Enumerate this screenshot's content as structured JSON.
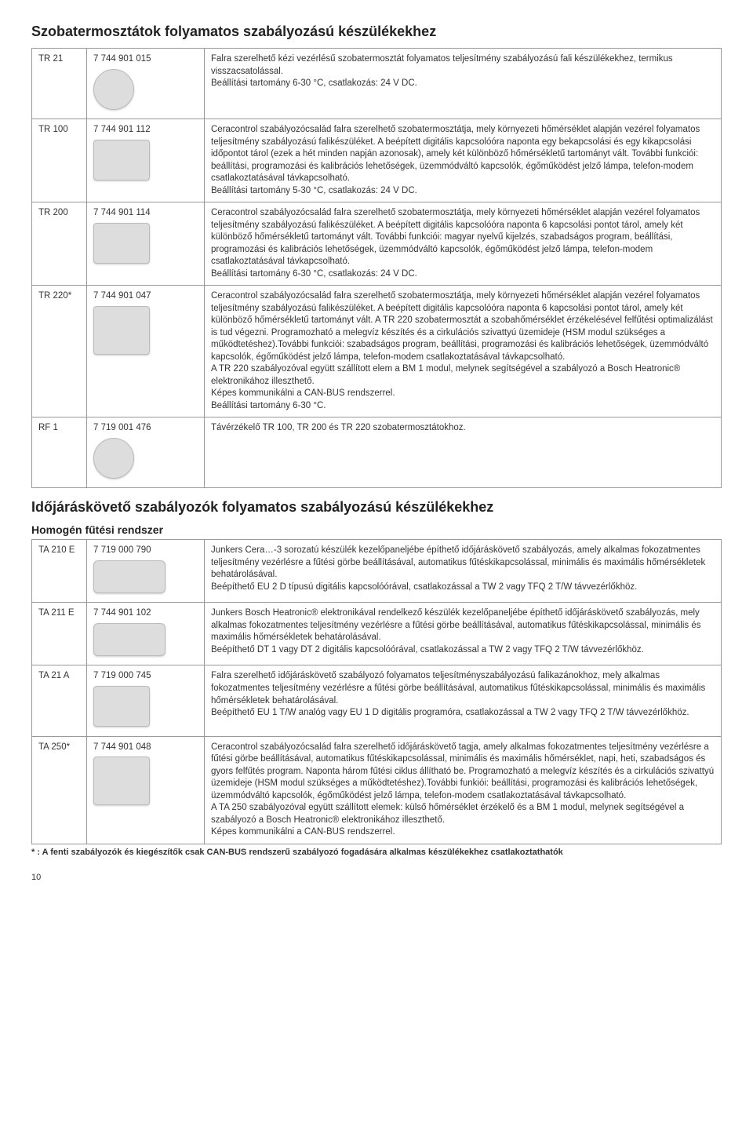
{
  "page_number": "10",
  "section1": {
    "title": "Szobatermosztátok folyamatos szabályozású készülékekhez",
    "rows": [
      {
        "model": "TR 21",
        "code": "7 744 901 015",
        "thumb_class": "round",
        "desc": "Falra szerelhető kézi vezérlésű szobatermosztát folyamatos teljesítmény szabályozású fali készülékekhez, termikus visszacsatolással.\nBeállítási tartomány 6-30 °C, csatlakozás: 24 V DC."
      },
      {
        "model": "TR 100",
        "code": "7 744 901 112",
        "thumb_class": "",
        "desc": "Ceracontrol szabályozócsalád falra szerelhető szobatermosztátja, mely környezeti hőmérséklet alapján vezérel folyamatos teljesítmény szabályozású falikészüléket. A beépített digitális kapcsolóóra naponta egy bekapcsolási és egy kikapcsolási időpontot tárol (ezek a hét minden napján azonosak), amely két különböző hőmérsékletű tartományt vált. További funkciói: beállítási, programozási és kalibrációs lehetőségek, üzemmódváltó kapcsolók, égőműködést jelző lámpa, telefon-modem csatlakoztatásával távkapcsolható.\nBeállítási tartomány 5-30 °C, csatlakozás: 24 V DC."
      },
      {
        "model": "TR 200",
        "code": "7 744 901 114",
        "thumb_class": "",
        "desc": "Ceracontrol szabályozócsalád falra szerelhető szobatermosztátja, mely környezeti hőmérséklet alapján vezérel folyamatos teljesítmény szabályozású falikészüléket. A beépített digitális kapcsolóóra naponta 6 kapcsolási pontot tárol, amely két különböző hőmérsékletű tartományt vált. További funkciói: magyar nyelvű kijelzés, szabadságos program, beállítási, programozási és kalibrációs lehetőségek, üzemmódváltó kapcsolók, égőműködést jelző lámpa, telefon-modem csatlakoztatásával távkapcsolható.\nBeállítási tartomány 6-30 °C, csatlakozás: 24 V DC."
      },
      {
        "model": "TR 220*",
        "code": "7 744 901 047",
        "thumb_class": "tall",
        "desc": "Ceracontrol szabályozócsalád falra szerelhető szobatermosztátja, mely környezeti hőmérséklet alapján vezérel folyamatos teljesítmény szabályozású falikészüléket. A beépített digitális kapcsolóóra naponta 6 kapcsolási pontot tárol, amely két különböző hőmérsékletű tartományt vált. A TR 220 szobatermosztát a szobahőmérséklet érzékelésével felfűtési optimalizálást is tud végezni. Programozható a melegvíz készítés és a cirkulációs szivattyú üzemideje (HSM modul szükséges a működtetéshez).További funkciói: szabadságos program, beállítási, programozási és kalibrációs lehetőségek, üzemmódváltó kapcsolók, égőműködést jelző lámpa, telefon-modem csatlakoztatásával távkapcsolható.\nA TR 220 szabályozóval együtt szállított elem a BM 1 modul, melynek segítségével a szabályozó a Bosch Heatronic® elektronikához illeszthető.\nKépes kommunikálni a CAN-BUS rendszerrel.\nBeállítási tartomány 6-30 °C."
      },
      {
        "model": "RF 1",
        "code": "7 719 001 476",
        "thumb_class": "round",
        "desc": "Távérzékelő TR 100, TR 200 és TR 220 szobatermosztátokhoz."
      }
    ]
  },
  "section2": {
    "title": "Időjáráskövető szabályozók folyamatos szabályozású készülékekhez",
    "subtitle": "Homogén fűtési rendszer",
    "rows": [
      {
        "model": "TA 210 E",
        "code": "7 719 000 790",
        "thumb_class": "panel",
        "desc": "Junkers Cera…-3 sorozatú készülék kezelőpaneljébe építhető időjáráskövető szabályozás, amely alkalmas fokozatmentes teljesítmény vezérlésre a fűtési görbe beállításával, automatikus fűtéskikapcsolással, minimális és maximális hőmérsékletek behatárolásával.\nBeépíthető EU 2 D típusú digitális kapcsolóórával, csatlakozással a TW 2 vagy TFQ 2 T/W távvezérlőkhöz."
      },
      {
        "model": "TA 211 E",
        "code": "7 744 901 102",
        "thumb_class": "panel",
        "desc": "Junkers Bosch Heatronic® elektronikával rendelkező készülék kezelőpaneljébe építhető időjáráskövető szabályozás, mely alkalmas fokozatmentes teljesítmény vezérlésre a fűtési görbe beállításával, automatikus fűtéskikapcsolással, minimális és maximális hőmérsékletek behatárolásával.\nBeépíthető DT 1 vagy DT 2 digitális kapcsolóórával, csatlakozással a TW 2 vagy TFQ 2 T/W távvezérlőkhöz."
      },
      {
        "model": "TA 21 A",
        "code": "7 719 000 745",
        "thumb_class": "",
        "desc": "Falra szerelhető időjáráskövető szabályozó folyamatos teljesítményszabályozású falikazánokhoz, mely alkalmas fokozatmentes teljesítmény vezérlésre a fűtési görbe beállításával, automatikus fűtéskikapcsolással, minimális és maximális hőmérsékletek behatárolásával.\nBeépíthető EU 1 T/W analóg vagy EU 1 D digitális programóra, csatlakozással a TW 2 vagy TFQ 2 T/W távvezérlőkhöz."
      },
      {
        "model": "TA 250*",
        "code": "7 744 901 048",
        "thumb_class": "tall",
        "desc": "Ceracontrol szabályozócsalád falra szerelhető időjáráskövető tagja, amely alkalmas fokozatmentes teljesítmény vezérlésre a fűtési görbe beállításával, automatikus fűtéskikapcsolással, minimális és maximális hőmérséklet, napi, heti, szabadságos és gyors felfűtés program. Naponta három fűtési ciklus állítható be. Programozható a melegvíz készítés és a cirkulációs szivattyú üzemideje (HSM modul szükséges a működtetéshez).További funkiói: beállítási, programozási és kalibrációs lehetőségek, üzemmódváltó kapcsolók, égőműködést jelző lámpa, telefon-modem csatlakoztatásával távkapcsolható.\nA TA 250 szabályozóval együtt szállított elemek: külső hőmérséklet érzékelő és a BM 1 modul, melynek segítségével a szabályozó a Bosch Heatronic® elektronikához illeszthető.\nKépes kommunikálni a CAN-BUS rendszerrel."
      }
    ],
    "footnote": "* :  A fenti szabályozók és kiegészítők csak CAN-BUS rendszerű szabályozó fogadására alkalmas készülékekhez csatlakoztathatók"
  }
}
